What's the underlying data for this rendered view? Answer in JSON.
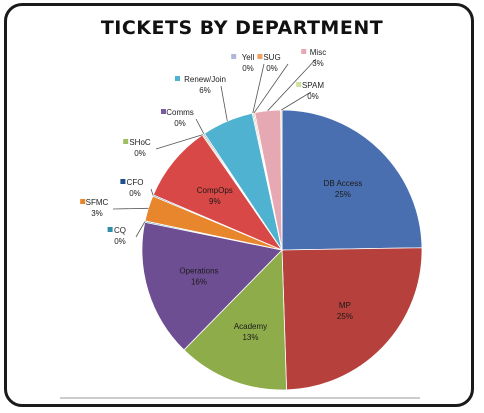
{
  "chart_data": {
    "type": "pie",
    "title": "TICKETS BY DEPARTMENT",
    "slices": [
      {
        "name": "DB Access",
        "pct": "25%",
        "value": 25,
        "color": "#4a6fb0",
        "inside": true
      },
      {
        "name": "MP",
        "pct": "25%",
        "value": 25,
        "color": "#b5403c",
        "inside": true
      },
      {
        "name": "Academy",
        "pct": "13%",
        "value": 13,
        "color": "#8eac4a",
        "inside": true
      },
      {
        "name": "Operations",
        "pct": "16%",
        "value": 16,
        "color": "#6e4e92",
        "inside": true
      },
      {
        "name": "CQ",
        "pct": "0%",
        "value": 0,
        "color": "#2f8ea8",
        "inside": false
      },
      {
        "name": "SFMC",
        "pct": "3%",
        "value": 3,
        "color": "#e8862d",
        "inside": false
      },
      {
        "name": "CFO",
        "pct": "0%",
        "value": 0,
        "color": "#1f4f8c",
        "inside": false
      },
      {
        "name": "CompOps",
        "pct": "9%",
        "value": 9,
        "color": "#d84846",
        "inside": true
      },
      {
        "name": "SHoC",
        "pct": "0%",
        "value": 0,
        "color": "#a0c060",
        "inside": false
      },
      {
        "name": "Comms",
        "pct": "0%",
        "value": 0,
        "color": "#7a5aa2",
        "inside": false
      },
      {
        "name": "Renew/Join",
        "pct": "6%",
        "value": 6,
        "color": "#4fb2d0",
        "inside": false
      },
      {
        "name": "Yell",
        "pct": "0%",
        "value": 0,
        "color": "#b0b8d8",
        "inside": false
      },
      {
        "name": "SUG",
        "pct": "0%",
        "value": 0,
        "color": "#f0a060",
        "inside": false
      },
      {
        "name": "Misc",
        "pct": "3%",
        "value": 3,
        "color": "#e6a9b3",
        "inside": false
      },
      {
        "name": "SPAM",
        "pct": "0%",
        "value": 0,
        "color": "#cfe0a0",
        "inside": false
      }
    ]
  }
}
